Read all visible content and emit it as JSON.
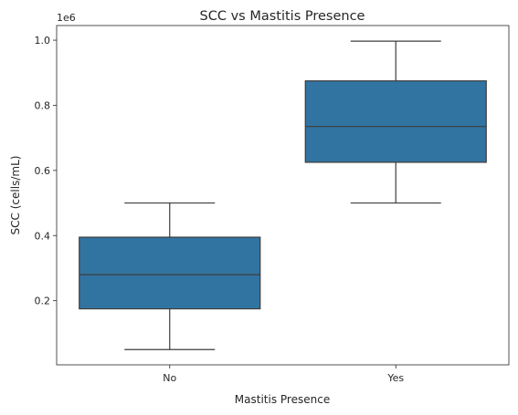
{
  "chart_data": {
    "type": "box",
    "title": "SCC vs Mastitis Presence",
    "xlabel": "Mastitis Presence",
    "ylabel": "SCC (cells/mL)",
    "y_offset_label": "1e6",
    "y_ticks": [
      0.2,
      0.4,
      0.6,
      0.8,
      1.0
    ],
    "y_tick_labels": [
      "0.2",
      "0.4",
      "0.6",
      "0.8",
      "1.0"
    ],
    "ylim": [
      0.003,
      1.045
    ],
    "categories": [
      "No",
      "Yes"
    ],
    "boxes": [
      {
        "category": "No",
        "whisker_low": 0.05,
        "q1": 0.175,
        "median": 0.28,
        "q3": 0.395,
        "whisker_high": 0.5
      },
      {
        "category": "Yes",
        "whisker_low": 0.5,
        "q1": 0.625,
        "median": 0.735,
        "q3": 0.875,
        "whisker_high": 0.997
      }
    ],
    "box_color": "#3274a1",
    "line_color": "#3d3d3d",
    "grid": false,
    "legend": "none"
  }
}
